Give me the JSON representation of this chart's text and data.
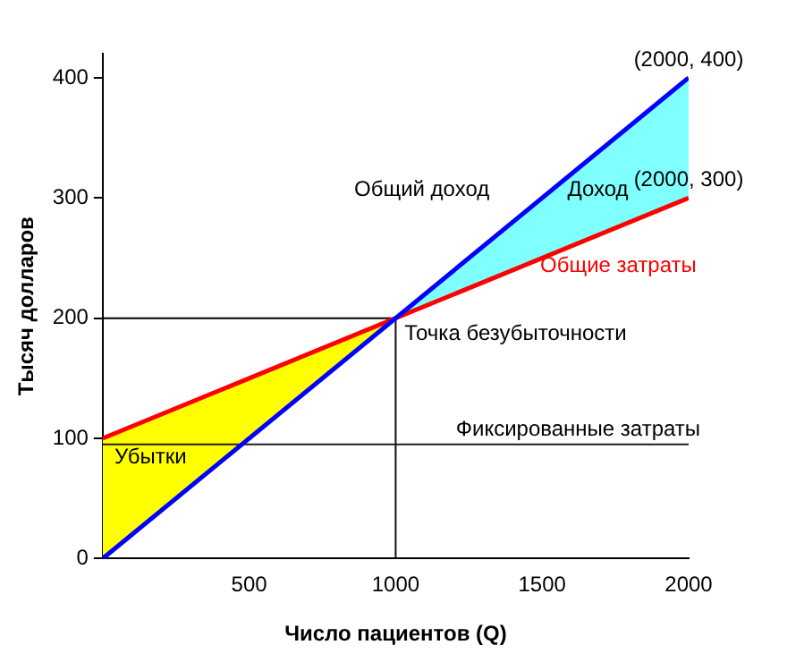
{
  "chart_data": {
    "type": "line",
    "xlabel": "Число пациентов (Q)",
    "ylabel": "Тысяч долларов",
    "xlim": [
      0,
      2000
    ],
    "xticks": [
      500,
      1000,
      1500,
      2000
    ],
    "ylim": [
      0,
      420
    ],
    "yticks": [
      0,
      100,
      200,
      300,
      400
    ],
    "grid": false,
    "legend": false,
    "marker": "none",
    "line_style": "solid",
    "series": [
      {
        "type": "area",
        "color": "#ffff00",
        "x": [
          0,
          1000,
          0
        ],
        "values": [
          100,
          200,
          0
        ]
      },
      {
        "type": "area",
        "color": "#80ffff",
        "x": [
          1000,
          2000,
          2000
        ],
        "values": [
          200,
          400,
          300
        ]
      },
      {
        "color": "#0000ff",
        "x": [
          0,
          2000
        ],
        "values": [
          0,
          400
        ]
      },
      {
        "name": "Общие затраты",
        "color": "#ff0000",
        "x": [
          0,
          2000
        ],
        "values": [
          100,
          300
        ]
      },
      {
        "name": "Точка безубыточности",
        "color": "#000000",
        "x": [
          0,
          1000
        ],
        "values": [
          200,
          200
        ]
      },
      {
        "color": "#101010",
        "x": [
          1000,
          1000
        ],
        "values": [
          200,
          0
        ]
      },
      {
        "name": "Фиксированные затраты",
        "color": "#202020",
        "x": [
          0,
          2000
        ],
        "values": [
          95,
          95
        ]
      }
    ],
    "annotations": [
      {
        "text": "(2000, 400)",
        "x": 2000,
        "y": 400
      },
      {
        "text": "(2000, 300)",
        "x": 2000,
        "y": 300
      },
      "Убытки",
      "Доход",
      "Общий доход"
    ]
  }
}
